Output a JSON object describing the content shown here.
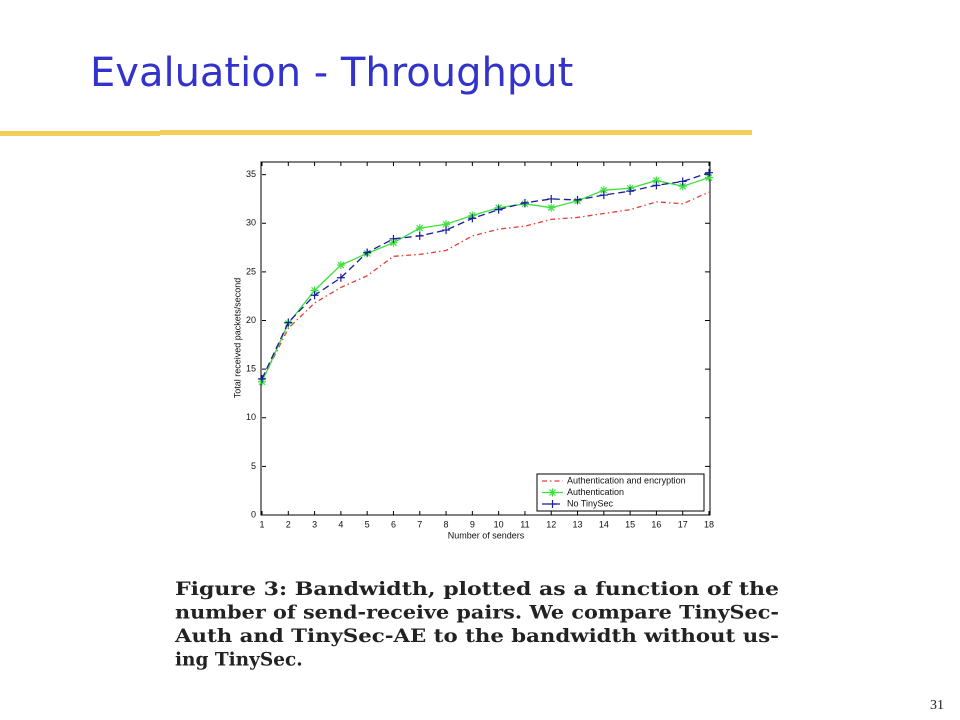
{
  "title": "Evaluation - Throughput",
  "chart_data": {
    "type": "line",
    "x": [
      1,
      2,
      3,
      4,
      5,
      6,
      7,
      8,
      9,
      10,
      11,
      12,
      13,
      14,
      15,
      16,
      17,
      18
    ],
    "xlim": [
      1,
      18
    ],
    "xticks": [
      1,
      2,
      3,
      4,
      5,
      6,
      7,
      8,
      9,
      10,
      11,
      12,
      13,
      14,
      15,
      16,
      17,
      18
    ],
    "ylim": [
      0,
      36.3
    ],
    "yticks": [
      0,
      5,
      10,
      15,
      20,
      25,
      30,
      35
    ],
    "x_label": "Number of senders",
    "y_label": "Total received packets/second",
    "legend": "lower right",
    "series": [
      {
        "name": "Authentication and encryption",
        "color": "#e0403a",
        "dash": "5 3 1.5 3",
        "marker": "none",
        "values": [
          13.8,
          19.2,
          21.8,
          23.4,
          24.6,
          26.6,
          26.8,
          27.2,
          28.7,
          29.4,
          29.7,
          30.4,
          30.6,
          31.0,
          31.4,
          32.2,
          32.0,
          33.2
        ]
      },
      {
        "name": "Authentication",
        "color": "#3ee03e",
        "dash": "none",
        "marker": "star",
        "values": [
          13.7,
          19.7,
          23.1,
          25.7,
          26.9,
          28.0,
          29.5,
          29.9,
          30.8,
          31.6,
          32.0,
          31.6,
          32.3,
          33.4,
          33.6,
          34.4,
          33.8,
          34.7
        ]
      },
      {
        "name": "No TinySec",
        "color": "#1c1ca0",
        "dash": "7 4",
        "marker": "plus",
        "values": [
          14.0,
          19.8,
          22.6,
          24.4,
          27.0,
          28.4,
          28.7,
          29.3,
          30.5,
          31.4,
          32.1,
          32.5,
          32.4,
          32.9,
          33.3,
          33.9,
          34.3,
          35.2
        ]
      }
    ]
  },
  "caption": [
    "Figure 3:  Bandwidth, plotted as a function of the",
    "number of send-receive pairs.  We compare TinySec-",
    "Auth and TinySec-AE to the bandwidth without us-",
    "ing TinySec."
  ],
  "page_number": "31"
}
